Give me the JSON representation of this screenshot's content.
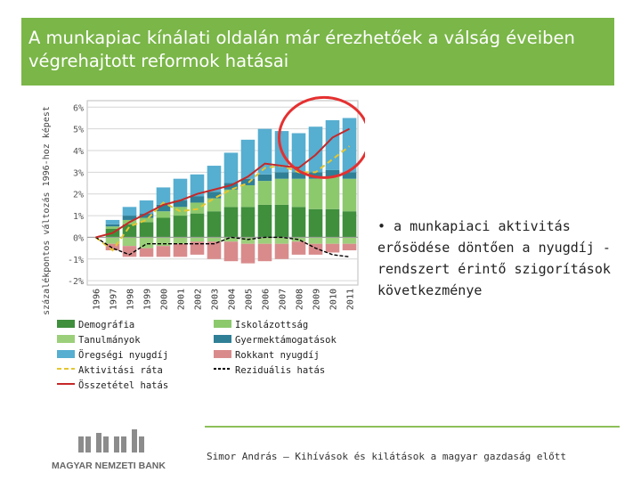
{
  "slide": {
    "title": "A munkapiac kínálati oldalán már érezhetőek a válság éveiben végrehajtott reformok hatásai",
    "bullet": "a munkapiaci aktivitás erősödése döntően a nyugdíj -rendszert érintő szigorítások következménye",
    "footer": "Simor András – Kihívások és kilátások a magyar gazdaság előtt",
    "logo_text": "MAGYAR NEMZETI BANK"
  },
  "colors": {
    "title_bg": "#7ab648",
    "demografia": "#3f8f3c",
    "tanulmanyok": "#9ccf7a",
    "iskolazottsag": "#8cc96d",
    "gyermektamogatas": "#2f7f96",
    "oregsegi_nyugdij": "#56aed0",
    "rokkant_nyugdij": "#d98b8c",
    "aktivitasi_rata": "#e6c630",
    "osszetetel": "#c62828",
    "rezidualis": "#000000",
    "circle": "#e53030"
  },
  "chart_data": {
    "type": "bar",
    "stacked": true,
    "ylabel": "százalékpontos változás 1996-hoz képest",
    "ylim": [
      -2.2,
      6.3
    ],
    "yticks": [
      -2,
      -1,
      0,
      1,
      2,
      3,
      4,
      5,
      6
    ],
    "ytick_labels": [
      "-2%",
      "-1%",
      "0%",
      "1%",
      "2%",
      "3%",
      "4%",
      "5%",
      "6%"
    ],
    "categories": [
      "1996",
      "1997",
      "1998",
      "1999",
      "2000",
      "2001",
      "2002",
      "2003",
      "2004",
      "2005",
      "2006",
      "2007",
      "2008",
      "2009",
      "2010",
      "2011"
    ],
    "grid": true,
    "legend_position": "bottom",
    "series": [
      {
        "name": "Demográfia",
        "kind": "bar",
        "color_key": "demografia",
        "values": [
          0,
          0.4,
          0.6,
          0.7,
          0.9,
          1.0,
          1.1,
          1.2,
          1.4,
          1.4,
          1.5,
          1.5,
          1.4,
          1.3,
          1.3,
          1.2
        ]
      },
      {
        "name": "Iskolázottság",
        "kind": "bar",
        "color_key": "iskolazottsag",
        "values": [
          0,
          0.1,
          0.2,
          0.2,
          0.3,
          0.4,
          0.5,
          0.6,
          0.8,
          1.0,
          1.1,
          1.2,
          1.3,
          1.4,
          1.5,
          1.5
        ]
      },
      {
        "name": "Gyermektámogatások",
        "kind": "bar",
        "color_key": "gyermektamogatas",
        "values": [
          0,
          0.1,
          0.2,
          0.2,
          0.3,
          0.3,
          0.3,
          0.3,
          0.3,
          0.3,
          0.3,
          0.3,
          0.3,
          0.3,
          0.3,
          0.3
        ]
      },
      {
        "name": "Öregségi nyugdíj",
        "kind": "bar",
        "color_key": "oregsegi_nyugdij",
        "values": [
          0,
          0.2,
          0.4,
          0.6,
          0.8,
          1.0,
          1.0,
          1.2,
          1.4,
          1.8,
          2.1,
          1.9,
          1.8,
          2.1,
          2.3,
          2.5
        ]
      },
      {
        "name": "Tanulmányok",
        "kind": "bar",
        "color_key": "tanulmanyok",
        "values": [
          0,
          -0.3,
          -0.4,
          -0.5,
          -0.4,
          -0.3,
          -0.2,
          -0.2,
          -0.2,
          -0.3,
          -0.3,
          -0.3,
          -0.2,
          -0.3,
          -0.3,
          -0.3
        ]
      },
      {
        "name": "Rokkant nyugdíj",
        "kind": "bar",
        "color_key": "rokkant_nyugdij",
        "values": [
          0,
          -0.3,
          -0.5,
          -0.4,
          -0.5,
          -0.6,
          -0.6,
          -0.8,
          -0.9,
          -0.9,
          -0.8,
          -0.7,
          -0.6,
          -0.5,
          -0.4,
          -0.3
        ]
      },
      {
        "name": "Aktivitási ráta",
        "kind": "line",
        "dash": "dashed",
        "color_key": "aktivitasi_rata",
        "values": [
          0,
          -0.6,
          0.5,
          0.8,
          1.6,
          1.2,
          1.3,
          1.8,
          2.2,
          2.5,
          3.2,
          3.3,
          3.0,
          3.0,
          3.6,
          4.2
        ]
      },
      {
        "name": "Reziduális hatás",
        "kind": "line",
        "dash": "dashed",
        "color_key": "rezidualis",
        "values": [
          0,
          -0.5,
          -0.8,
          -0.3,
          -0.3,
          -0.3,
          -0.3,
          -0.3,
          0,
          -0.1,
          0,
          0,
          -0.1,
          -0.5,
          -0.8,
          -0.9
        ]
      },
      {
        "name": "Összetétel hatás",
        "kind": "line",
        "dash": "solid",
        "color_key": "osszetetel",
        "values": [
          0,
          0.2,
          0.7,
          1.1,
          1.5,
          1.7,
          2.0,
          2.2,
          2.4,
          2.8,
          3.4,
          3.3,
          3.2,
          3.8,
          4.6,
          5.0
        ]
      }
    ],
    "legend": [
      {
        "label": "Demográfia",
        "marker": "box",
        "color_key": "demografia"
      },
      {
        "label": "Iskolázottság",
        "marker": "box",
        "color_key": "iskolazottsag"
      },
      {
        "label": "Tanulmányok",
        "marker": "box",
        "color_key": "tanulmanyok"
      },
      {
        "label": "Gyermektámogatások",
        "marker": "box",
        "color_key": "gyermektamogatas"
      },
      {
        "label": "Öregségi nyugdíj",
        "marker": "box",
        "color_key": "oregsegi_nyugdij"
      },
      {
        "label": "Rokkant nyugdíj",
        "marker": "box",
        "color_key": "rokkant_nyugdij"
      },
      {
        "label": "Aktivitási ráta",
        "marker": "dash",
        "color_key": "aktivitasi_rata"
      },
      {
        "label": "Reziduális hatás",
        "marker": "dash",
        "color_key": "rezidualis"
      },
      {
        "label": "Összetétel hatás",
        "marker": "line",
        "color_key": "osszetetel"
      }
    ],
    "annotation": {
      "shape": "circle",
      "around_categories": [
        "2008",
        "2011"
      ]
    }
  }
}
